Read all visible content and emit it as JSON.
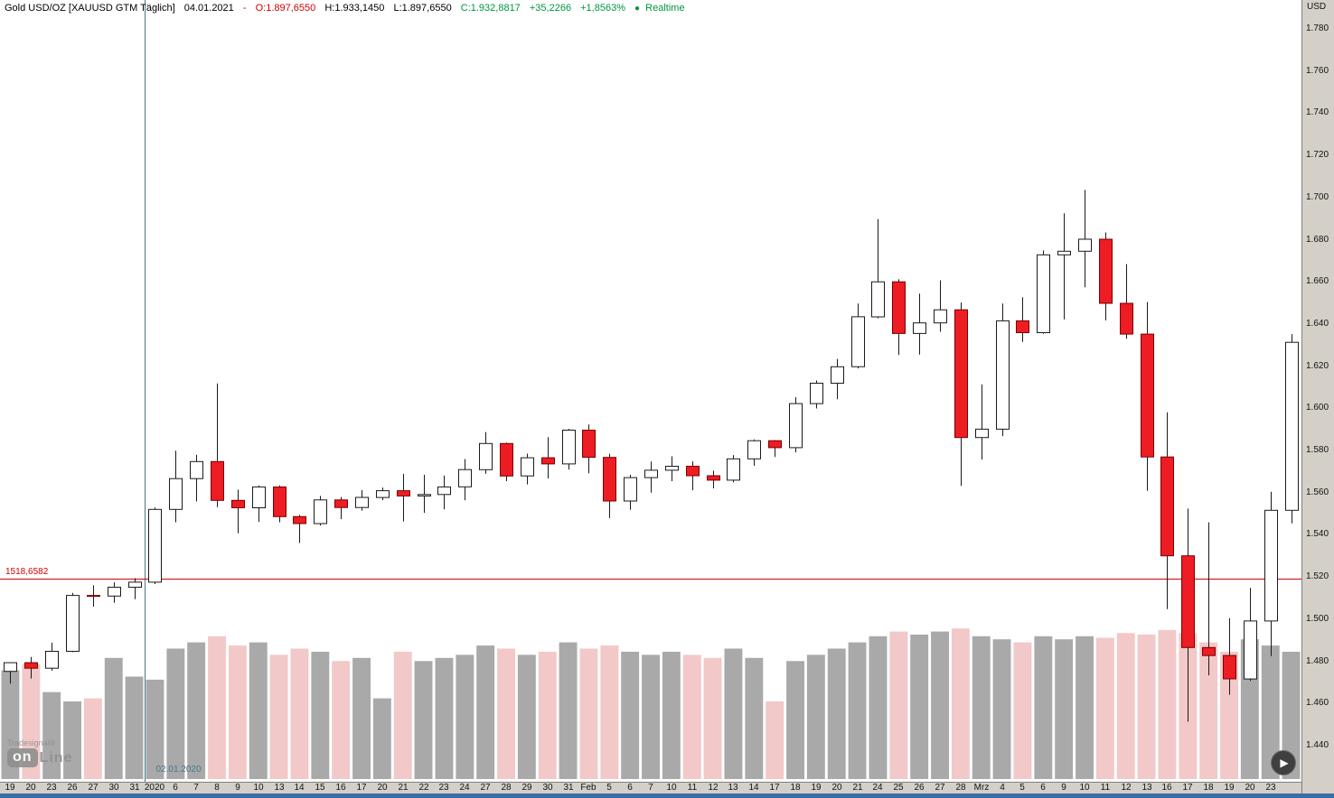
{
  "header": {
    "instrument": "Gold USD/OZ [XAUUSD GTM Täglich]",
    "date": "04.01.2021",
    "separator": "-",
    "open": "O:1.897,6550",
    "high": "H:1.933,1450",
    "low": "L:1.897,6550",
    "close": "C:1.932,8817",
    "change_abs": "+35,2266",
    "change_pct": "+1,8563%",
    "realtime": "Realtime"
  },
  "icons": {
    "play": "▶",
    "realtime_dot": "●"
  },
  "logo": {
    "brand": "Tradesignal®",
    "on": "on",
    "line": "Line"
  },
  "colors": {
    "up_candle": "#ffffff",
    "down_candle": "#ee1c23",
    "candle_outline_up": "#1a1a1a",
    "candle_outline_down": "#7a0000",
    "wick": "#1a1a1a",
    "volume_up": "#a9a9a9",
    "volume_down": "#f2c8c8",
    "hline": "#d40000",
    "vline": "#46788a",
    "axis_bg": "#d4d0c8",
    "bottom_strip": "#3a6ea5",
    "header_negative": "#d40000",
    "header_positive": "#00963f"
  },
  "chart_data": {
    "type": "candlestick",
    "title": "Gold USD/OZ [XAUUSD GTM Täglich]",
    "legend_position": "none",
    "grid": false,
    "y_axis": {
      "currency": "USD",
      "ticks": [
        1780,
        1760,
        1740,
        1720,
        1700,
        1680,
        1660,
        1640,
        1620,
        1600,
        1580,
        1560,
        1540,
        1520,
        1500,
        1480,
        1460,
        1440
      ],
      "tick_labels": [
        "1.780",
        "1.760",
        "1.740",
        "1.720",
        "1.700",
        "1.680",
        "1.660",
        "1.640",
        "1.620",
        "1.600",
        "1.580",
        "1.560",
        "1.540",
        "1.520",
        "1.500",
        "1.480",
        "1.460",
        "1.440"
      ]
    },
    "y_range": [
      1422.4,
      1793.3
    ],
    "x_labels": [
      "19",
      "20",
      "23",
      "26",
      "27",
      "30",
      "31",
      "2020",
      "6",
      "7",
      "8",
      "9",
      "10",
      "13",
      "14",
      "15",
      "16",
      "17",
      "20",
      "21",
      "22",
      "23",
      "24",
      "27",
      "28",
      "29",
      "30",
      "31",
      "Feb",
      "5",
      "6",
      "7",
      "10",
      "11",
      "12",
      "13",
      "14",
      "17",
      "18",
      "19",
      "20",
      "21",
      "24",
      "25",
      "26",
      "27",
      "28",
      "Mrz",
      "4",
      "5",
      "6",
      "9",
      "10",
      "11",
      "12",
      "13",
      "16",
      "17",
      "18",
      "19",
      "20",
      "23",
      ""
    ],
    "candles": [
      [
        1474.8,
        1479.0,
        1468.9,
        1478.9
      ],
      [
        1478.9,
        1481.6,
        1471.4,
        1476.3
      ],
      [
        1476.3,
        1488.4,
        1475.1,
        1484.3
      ],
      [
        1484.3,
        1512.0,
        1483.9,
        1510.8
      ],
      [
        1510.8,
        1515.6,
        1505.5,
        1510.5
      ],
      [
        1510.5,
        1517.0,
        1507.3,
        1514.7
      ],
      [
        1514.7,
        1519.0,
        1509.0,
        1517.1
      ],
      [
        1517.1,
        1552.5,
        1516.2,
        1551.6
      ],
      [
        1551.6,
        1579.5,
        1545.5,
        1566.2
      ],
      [
        1566.2,
        1577.5,
        1555.4,
        1574.3
      ],
      [
        1574.3,
        1611.4,
        1552.7,
        1555.9
      ],
      [
        1555.9,
        1561.0,
        1540.3,
        1552.4
      ],
      [
        1552.4,
        1563.0,
        1545.7,
        1562.3
      ],
      [
        1562.3,
        1563.0,
        1545.5,
        1548.2
      ],
      [
        1548.2,
        1549.0,
        1535.7,
        1544.9
      ],
      [
        1544.9,
        1558.0,
        1544.0,
        1556.1
      ],
      [
        1556.1,
        1557.5,
        1547.0,
        1552.5
      ],
      [
        1552.5,
        1560.8,
        1551.0,
        1557.3
      ],
      [
        1557.3,
        1562.0,
        1556.0,
        1560.5
      ],
      [
        1560.5,
        1568.5,
        1545.9,
        1558.0
      ],
      [
        1558.0,
        1568.0,
        1550.0,
        1558.7
      ],
      [
        1558.7,
        1567.7,
        1551.6,
        1562.3
      ],
      [
        1562.3,
        1575.5,
        1556.0,
        1570.5
      ],
      [
        1570.5,
        1588.3,
        1568.5,
        1582.9
      ],
      [
        1582.9,
        1583.3,
        1565.0,
        1567.5
      ],
      [
        1567.5,
        1578.1,
        1563.5,
        1576.1
      ],
      [
        1576.1,
        1585.9,
        1566.3,
        1573.2
      ],
      [
        1573.2,
        1589.8,
        1570.5,
        1589.2
      ],
      [
        1589.2,
        1591.9,
        1568.8,
        1576.3
      ],
      [
        1576.3,
        1578.0,
        1547.5,
        1555.6
      ],
      [
        1555.6,
        1568.0,
        1551.4,
        1566.7
      ],
      [
        1566.7,
        1574.3,
        1559.6,
        1570.2
      ],
      [
        1570.2,
        1576.8,
        1565.0,
        1572.1
      ],
      [
        1572.1,
        1574.4,
        1560.7,
        1567.6
      ],
      [
        1567.6,
        1570.0,
        1561.6,
        1565.5
      ],
      [
        1565.5,
        1577.4,
        1564.5,
        1575.6
      ],
      [
        1575.6,
        1584.8,
        1572.3,
        1584.2
      ],
      [
        1584.2,
        1584.5,
        1576.5,
        1580.9
      ],
      [
        1580.9,
        1604.9,
        1578.7,
        1601.8
      ],
      [
        1601.8,
        1612.8,
        1599.5,
        1611.5
      ],
      [
        1611.5,
        1623.0,
        1603.9,
        1619.3
      ],
      [
        1619.3,
        1649.3,
        1618.5,
        1643.0
      ],
      [
        1643.0,
        1689.3,
        1642.3,
        1659.6
      ],
      [
        1659.6,
        1660.8,
        1624.9,
        1635.1
      ],
      [
        1635.1,
        1654.0,
        1625.1,
        1640.1
      ],
      [
        1640.1,
        1660.3,
        1635.9,
        1646.3
      ],
      [
        1646.3,
        1649.8,
        1562.8,
        1585.7
      ],
      [
        1585.7,
        1610.9,
        1575.3,
        1589.7
      ],
      [
        1589.7,
        1649.3,
        1586.4,
        1641.1
      ],
      [
        1641.1,
        1652.3,
        1631.1,
        1635.5
      ],
      [
        1635.5,
        1674.5,
        1634.9,
        1672.4
      ],
      [
        1672.4,
        1692.1,
        1641.8,
        1674.1
      ],
      [
        1674.1,
        1703.2,
        1657.0,
        1679.8
      ],
      [
        1679.8,
        1683.0,
        1641.3,
        1649.4
      ],
      [
        1649.4,
        1668.0,
        1632.6,
        1634.8
      ],
      [
        1634.8,
        1650.0,
        1560.4,
        1576.5
      ],
      [
        1576.5,
        1597.7,
        1504.3,
        1529.6
      ],
      [
        1529.6,
        1552.0,
        1450.9,
        1486.1
      ],
      [
        1486.1,
        1545.5,
        1472.9,
        1482.3
      ],
      [
        1482.3,
        1500.0,
        1463.7,
        1471.2
      ],
      [
        1471.2,
        1514.4,
        1470.3,
        1498.7
      ],
      [
        1498.7,
        1560.0,
        1482.0,
        1551.2
      ],
      [
        1551.2,
        1634.8,
        1545.0,
        1630.9
      ]
    ],
    "volume": [
      70,
      74,
      56,
      50,
      52,
      78,
      66,
      64,
      84,
      88,
      92,
      86,
      88,
      80,
      84,
      82,
      76,
      78,
      52,
      82,
      76,
      78,
      80,
      86,
      84,
      80,
      82,
      88,
      84,
      86,
      82,
      80,
      82,
      80,
      78,
      84,
      78,
      50,
      76,
      80,
      84,
      88,
      92,
      95,
      93,
      95,
      97,
      92,
      90,
      88,
      92,
      90,
      92,
      91,
      94,
      93,
      96,
      94,
      88,
      82,
      90,
      86,
      82
    ],
    "annotations": {
      "hline": {
        "value": 1518.6582,
        "label": "1518,6582"
      },
      "vline": {
        "label": "02.01.2020",
        "candle_index": 7
      }
    }
  }
}
